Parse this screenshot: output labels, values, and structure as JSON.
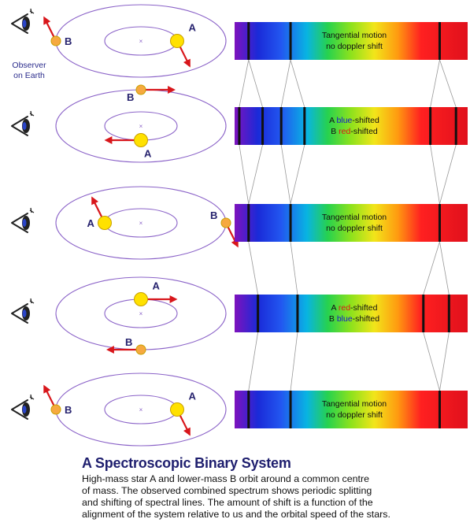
{
  "colors": {
    "orbit": "#8b63c8",
    "arrow": "#d8161b",
    "star_a": "#ffe100",
    "star_b": "#f6a940",
    "star_outline": "#c8a000",
    "label": "#26226e",
    "blue_text": "#1515d0",
    "red_text": "#e01414",
    "connector": "#999999",
    "spectrum_line": "#111111"
  },
  "observer_label": [
    "Observer",
    "on Earth"
  ],
  "panels": [
    {
      "star_a": {
        "label": "A",
        "orbit": "inner",
        "angle_deg": 0,
        "arrow": "down-right",
        "label_side": "above"
      },
      "star_b": {
        "label": "B",
        "orbit": "outer",
        "angle_deg": 180,
        "arrow": "up-left",
        "label_side": "right"
      },
      "spectrum_text": [
        [
          {
            "t": "Tangential motion",
            "c": "normal"
          }
        ],
        [
          {
            "t": "no doppler shift",
            "c": "normal"
          }
        ]
      ],
      "lines": [
        0.06,
        0.24,
        0.88
      ]
    },
    {
      "star_a": {
        "label": "A",
        "orbit": "inner",
        "angle_deg": 90,
        "arrow": "left",
        "label_side": "below"
      },
      "star_b": {
        "label": "B",
        "orbit": "outer",
        "angle_deg": 270,
        "arrow": "right",
        "label_side": "below-left"
      },
      "spectrum_text": [
        [
          {
            "t": "A ",
            "c": "normal"
          },
          {
            "t": "blue",
            "c": "blue"
          },
          {
            "t": "-shifted",
            "c": "normal"
          }
        ],
        [
          {
            "t": "B ",
            "c": "normal"
          },
          {
            "t": "red",
            "c": "red"
          },
          {
            "t": "-shifted",
            "c": "normal"
          }
        ]
      ],
      "lines": [
        0.02,
        0.12,
        0.2,
        0.3,
        0.84,
        0.95
      ]
    },
    {
      "star_a": {
        "label": "A",
        "orbit": "inner",
        "angle_deg": 180,
        "arrow": "up-left",
        "label_side": "left"
      },
      "star_b": {
        "label": "B",
        "orbit": "outer",
        "angle_deg": 0,
        "arrow": "down-right",
        "label_side": "above-left"
      },
      "spectrum_text": [
        [
          {
            "t": "Tangential motion",
            "c": "normal"
          }
        ],
        [
          {
            "t": "no doppler shift",
            "c": "normal"
          }
        ]
      ],
      "lines": [
        0.06,
        0.24,
        0.88
      ]
    },
    {
      "star_a": {
        "label": "A",
        "orbit": "inner",
        "angle_deg": 270,
        "arrow": "right",
        "label_side": "above"
      },
      "star_b": {
        "label": "B",
        "orbit": "outer",
        "angle_deg": 90,
        "arrow": "left",
        "label_side": "above-left"
      },
      "spectrum_text": [
        [
          {
            "t": "A ",
            "c": "normal"
          },
          {
            "t": "red",
            "c": "red"
          },
          {
            "t": "-shifted",
            "c": "normal"
          }
        ],
        [
          {
            "t": "B ",
            "c": "normal"
          },
          {
            "t": "blue",
            "c": "blue"
          },
          {
            "t": "-shifted",
            "c": "normal"
          }
        ]
      ],
      "lines": [
        0.1,
        0.27,
        0.81,
        0.92
      ]
    },
    {
      "star_a": {
        "label": "A",
        "orbit": "inner",
        "angle_deg": 0,
        "arrow": "down-right",
        "label_side": "above"
      },
      "star_b": {
        "label": "B",
        "orbit": "outer",
        "angle_deg": 180,
        "arrow": "up-left",
        "label_side": "right"
      },
      "spectrum_text": [
        [
          {
            "t": "Tangential motion",
            "c": "normal"
          }
        ],
        [
          {
            "t": "no doppler shift",
            "c": "normal"
          }
        ]
      ],
      "lines": [
        0.06,
        0.24,
        0.88
      ]
    }
  ],
  "connectors": [
    [
      [
        0.06,
        0.02
      ],
      [
        0.06,
        0.12
      ],
      [
        0.24,
        0.2
      ],
      [
        0.24,
        0.3
      ],
      [
        0.88,
        0.84
      ],
      [
        0.88,
        0.95
      ]
    ],
    [
      [
        0.02,
        0.06
      ],
      [
        0.12,
        0.06
      ],
      [
        0.2,
        0.24
      ],
      [
        0.3,
        0.24
      ],
      [
        0.84,
        0.88
      ],
      [
        0.95,
        0.88
      ]
    ],
    [
      [
        0.06,
        0.1
      ],
      [
        0.24,
        0.27
      ],
      [
        0.88,
        0.81
      ],
      [
        0.88,
        0.92
      ]
    ],
    [
      [
        0.1,
        0.06
      ],
      [
        0.27,
        0.24
      ],
      [
        0.81,
        0.88
      ],
      [
        0.92,
        0.88
      ]
    ]
  ],
  "caption": {
    "title": "A Spectroscopic Binary System",
    "lines": [
      "High-mass star A and lower-mass B orbit around a common centre",
      "of mass. The observed combined spectrum shows periodic splitting",
      "and shifting of spectral lines. The amount of shift is a function of the",
      "alignment of the system relative to us and the orbital speed of the stars."
    ]
  }
}
